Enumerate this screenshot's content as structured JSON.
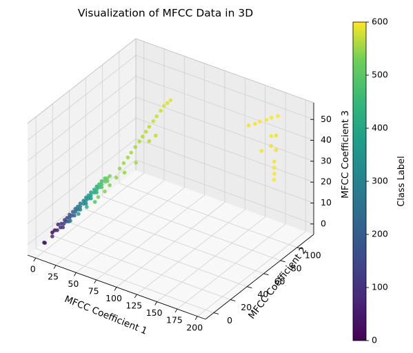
{
  "chart_data": {
    "type": "scatter",
    "title": "Visualization of MFCC Data in 3D",
    "xlabel": "MFCC Coefficient 1",
    "ylabel": "MFCC Coefficient 2",
    "zlabel": "MFCC Coefficient 3",
    "xlim": [
      -10,
      210
    ],
    "ylim": [
      -10,
      120
    ],
    "zlim": [
      -5,
      58
    ],
    "xticks": [
      "0",
      "25",
      "50",
      "75",
      "100",
      "125",
      "150",
      "175",
      "200"
    ],
    "yticks": [
      "0",
      "20",
      "40",
      "60",
      "80",
      "100"
    ],
    "zticks": [
      "0",
      "10",
      "20",
      "30",
      "40",
      "50"
    ],
    "grid": true,
    "colormap": "viridis",
    "colorbar": {
      "label": "Class Label",
      "range": [
        0,
        600
      ],
      "ticks": [
        "0",
        "100",
        "200",
        "300",
        "400",
        "500",
        "600"
      ]
    },
    "points": [
      [
        -5,
        5,
        -3,
        40
      ],
      [
        -4,
        5,
        -3,
        45
      ],
      [
        0,
        10,
        1,
        10
      ],
      [
        2,
        11,
        2,
        30
      ],
      [
        4,
        12,
        2,
        50
      ],
      [
        6,
        14,
        3,
        70
      ],
      [
        8,
        15,
        3,
        90
      ],
      [
        3,
        14,
        4,
        60
      ],
      [
        5,
        16,
        4,
        100
      ],
      [
        7,
        17,
        4,
        120
      ],
      [
        9,
        18,
        5,
        140
      ],
      [
        11,
        19,
        5,
        160
      ],
      [
        6,
        19,
        5,
        110
      ],
      [
        8,
        20,
        6,
        130
      ],
      [
        10,
        21,
        6,
        150
      ],
      [
        12,
        22,
        7,
        170
      ],
      [
        14,
        23,
        7,
        190
      ],
      [
        9,
        22,
        7,
        150
      ],
      [
        11,
        24,
        8,
        180
      ],
      [
        13,
        25,
        8,
        200
      ],
      [
        15,
        26,
        9,
        220
      ],
      [
        17,
        27,
        9,
        240
      ],
      [
        12,
        26,
        9,
        200
      ],
      [
        14,
        27,
        10,
        230
      ],
      [
        16,
        28,
        10,
        250
      ],
      [
        18,
        30,
        11,
        270
      ],
      [
        20,
        31,
        11,
        290
      ],
      [
        15,
        29,
        11,
        240
      ],
      [
        17,
        31,
        12,
        270
      ],
      [
        19,
        32,
        12,
        290
      ],
      [
        21,
        33,
        13,
        310
      ],
      [
        23,
        34,
        13,
        330
      ],
      [
        18,
        33,
        13,
        290
      ],
      [
        20,
        34,
        14,
        320
      ],
      [
        22,
        35,
        14,
        340
      ],
      [
        24,
        37,
        15,
        360
      ],
      [
        26,
        38,
        15,
        380
      ],
      [
        21,
        36,
        15,
        340
      ],
      [
        23,
        38,
        16,
        370
      ],
      [
        25,
        39,
        16,
        390
      ],
      [
        27,
        40,
        17,
        410
      ],
      [
        29,
        41,
        17,
        430
      ],
      [
        24,
        40,
        17,
        380
      ],
      [
        26,
        41,
        18,
        410
      ],
      [
        28,
        42,
        18,
        430
      ],
      [
        30,
        44,
        19,
        450
      ],
      [
        32,
        45,
        19,
        460
      ],
      [
        27,
        43,
        19,
        420
      ],
      [
        29,
        45,
        20,
        440
      ],
      [
        31,
        46,
        20,
        460
      ],
      [
        33,
        47,
        21,
        470
      ],
      [
        2,
        8,
        0,
        80
      ],
      [
        14,
        18,
        6,
        260
      ],
      [
        22,
        30,
        10,
        380
      ],
      [
        30,
        36,
        14,
        470
      ],
      [
        34,
        40,
        16,
        490
      ],
      [
        36,
        44,
        18,
        480
      ],
      [
        28,
        34,
        12,
        440
      ],
      [
        18,
        24,
        8,
        330
      ],
      [
        40,
        52,
        24,
        500
      ],
      [
        42,
        55,
        26,
        505
      ],
      [
        44,
        58,
        28,
        510
      ],
      [
        46,
        60,
        30,
        515
      ],
      [
        48,
        63,
        32,
        520
      ],
      [
        50,
        66,
        34,
        525
      ],
      [
        52,
        68,
        36,
        530
      ],
      [
        54,
        70,
        38,
        535
      ],
      [
        56,
        72,
        40,
        540
      ],
      [
        58,
        75,
        42,
        545
      ],
      [
        60,
        77,
        44,
        550
      ],
      [
        62,
        80,
        46,
        555
      ],
      [
        64,
        82,
        48,
        560
      ],
      [
        66,
        84,
        49,
        565
      ],
      [
        68,
        86,
        50,
        570
      ],
      [
        38,
        50,
        20,
        495
      ],
      [
        44,
        54,
        22,
        505
      ],
      [
        52,
        60,
        26,
        515
      ],
      [
        58,
        70,
        34,
        530
      ],
      [
        62,
        74,
        36,
        540
      ],
      [
        150,
        100,
        45,
        585
      ],
      [
        156,
        102,
        46,
        590
      ],
      [
        160,
        104,
        47,
        592
      ],
      [
        166,
        106,
        48,
        595
      ],
      [
        170,
        108,
        49,
        597
      ],
      [
        176,
        110,
        50,
        599
      ],
      [
        180,
        98,
        40,
        585
      ],
      [
        184,
        100,
        38,
        588
      ],
      [
        186,
        96,
        34,
        590
      ],
      [
        188,
        94,
        32,
        592
      ],
      [
        190,
        92,
        30,
        595
      ],
      [
        192,
        90,
        28,
        597
      ],
      [
        182,
        102,
        44,
        588
      ],
      [
        174,
        104,
        42,
        594
      ],
      [
        168,
        98,
        36,
        590
      ]
    ]
  }
}
